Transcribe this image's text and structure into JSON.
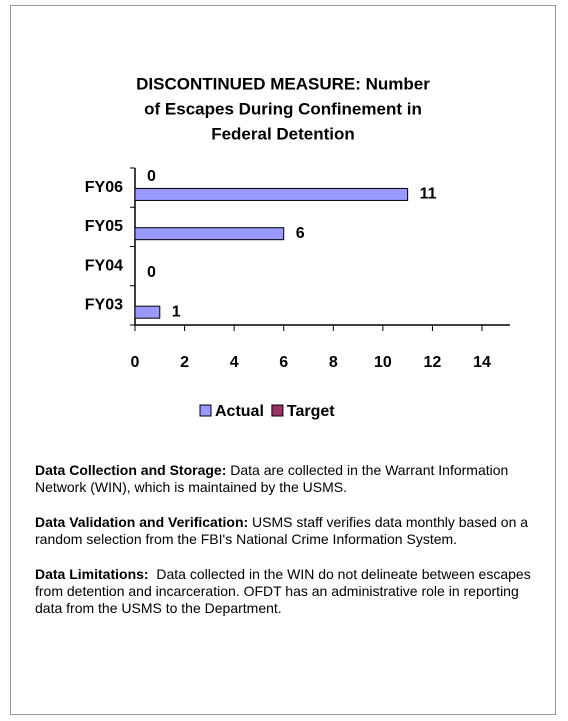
{
  "chart_data": {
    "type": "bar",
    "orientation": "horizontal",
    "title": [
      "DISCONTINUED MEASURE: Number",
      "of Escapes During Confinement in",
      "Federal Detention"
    ],
    "categories": [
      "FY03",
      "FY04",
      "FY05",
      "FY06"
    ],
    "series": [
      {
        "name": "Actual",
        "color": "#9999ff",
        "values": [
          1,
          0,
          6,
          11
        ]
      },
      {
        "name": "Target",
        "color": "#993366",
        "values": [
          null,
          null,
          null,
          0
        ]
      }
    ],
    "xlim": [
      0,
      14
    ],
    "xticks": [
      0,
      2,
      4,
      6,
      8,
      10,
      12,
      14
    ],
    "legend": "bottom"
  },
  "notes": [
    {
      "label": "Data Collection and Storage:",
      "text": " Data are collected in the Warrant Information Network (WIN), which is maintained by the USMS."
    },
    {
      "label": "Data Validation and Verification:",
      "text": " USMS staff verifies data monthly based on a random selection from the FBI's National Crime Information System."
    },
    {
      "label": "Data Limitations:",
      "text": "  Data collected in the WIN do not delineate between escapes from detention and incarceration. OFDT has an administrative role in reporting data from the USMS to the Department."
    }
  ]
}
